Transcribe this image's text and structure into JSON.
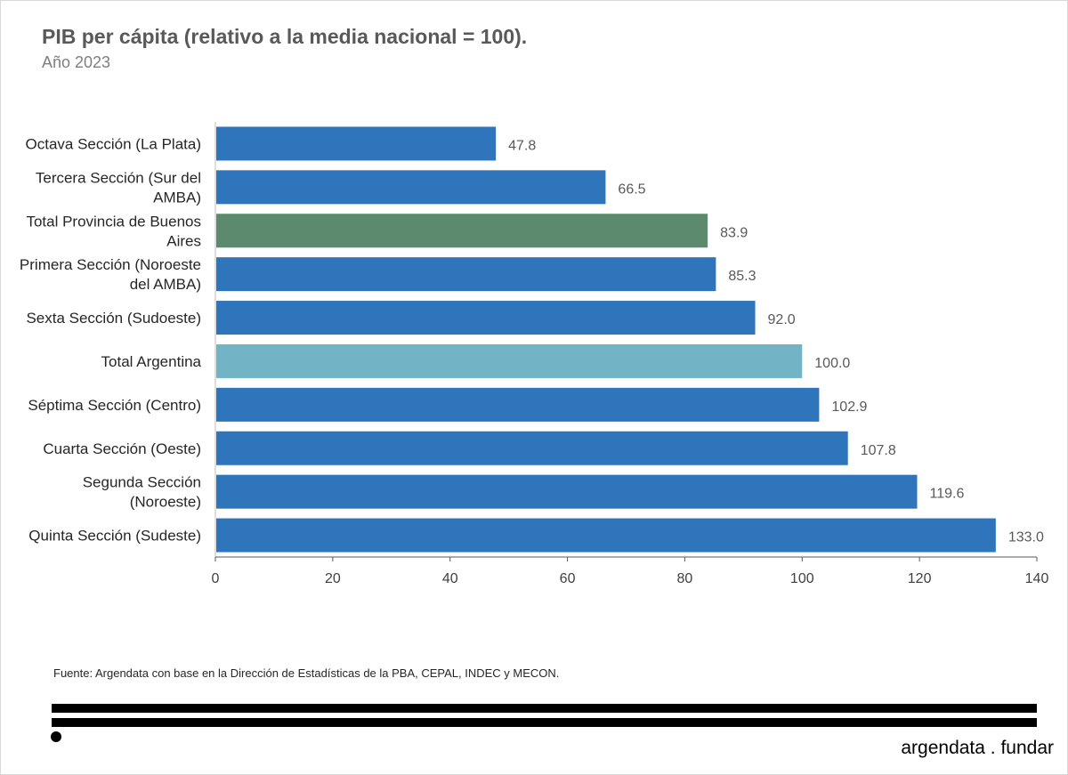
{
  "header": {
    "title": "PIB per cápita (relativo a la media nacional = 100).",
    "subtitle": "Año 2023"
  },
  "footer": {
    "source": "Fuente: Argendata con base en la Dirección de Estadísticas de la PBA, CEPAL, INDEC y MECON.",
    "brand": "argendata . fundar"
  },
  "chart_data": {
    "type": "bar",
    "orientation": "horizontal",
    "title": "PIB per cápita (relativo a la media nacional = 100).",
    "subtitle": "Año 2023",
    "xlabel": "",
    "ylabel": "",
    "xlim": [
      0,
      140
    ],
    "xticks": [
      0,
      20,
      40,
      60,
      80,
      100,
      120,
      140
    ],
    "grid": false,
    "legend": "none",
    "categories": [
      "Octava Sección (La Plata)",
      "Tercera Sección (Sur del AMBA)",
      "Total Provincia de Buenos Aires",
      "Primera Sección (Noroeste del AMBA)",
      "Sexta Sección (Sudoeste)",
      "Total Argentina",
      "Séptima Sección (Centro)",
      "Cuarta Sección (Oeste)",
      "Segunda Sección (Noroeste)",
      "Quinta Sección (Sudeste)"
    ],
    "category_lines": [
      [
        "Octava Sección (La Plata)"
      ],
      [
        "Tercera Sección (Sur del",
        "AMBA)"
      ],
      [
        "Total Provincia de Buenos",
        "Aires"
      ],
      [
        "Primera Sección (Noroeste",
        "del AMBA)"
      ],
      [
        "Sexta Sección (Sudoeste)"
      ],
      [
        "Total Argentina"
      ],
      [
        "Séptima Sección (Centro)"
      ],
      [
        "Cuarta Sección (Oeste)"
      ],
      [
        "Segunda Sección",
        "(Noroeste)"
      ],
      [
        "Quinta Sección (Sudeste)"
      ]
    ],
    "values": [
      47.8,
      66.5,
      83.9,
      85.3,
      92.0,
      100.0,
      102.9,
      107.8,
      119.6,
      133.0
    ],
    "value_labels": [
      "47.8",
      "66.5",
      "83.9",
      "85.3",
      "92.0",
      "100.0",
      "102.9",
      "107.8",
      "119.6",
      "133.0"
    ],
    "colors": [
      "#2f75bb",
      "#2f75bb",
      "#5b8a6e",
      "#2f75bb",
      "#2f75bb",
      "#72b4c6",
      "#2f75bb",
      "#2f75bb",
      "#2f75bb",
      "#2f75bb"
    ]
  }
}
